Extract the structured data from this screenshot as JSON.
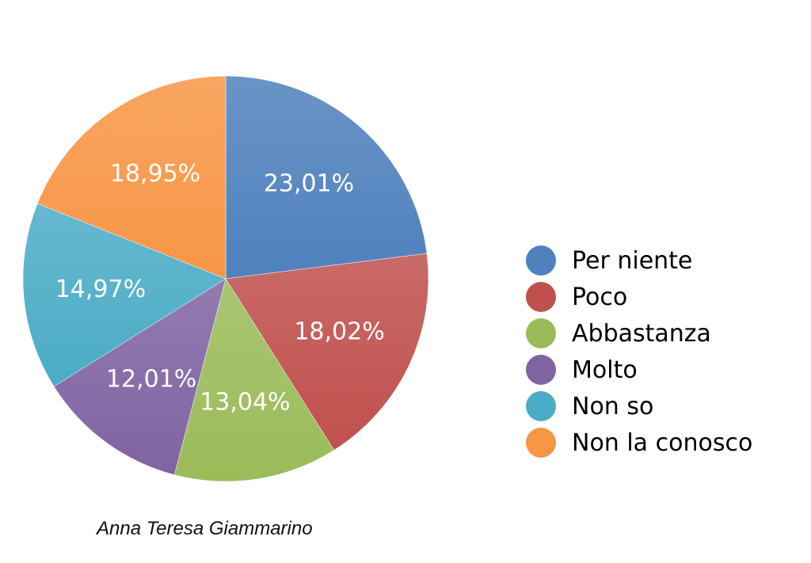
{
  "chart_data": {
    "type": "pie",
    "title": "",
    "start_angle": "top, clockwise",
    "slices": [
      {
        "label": "Per niente",
        "value": 23.01,
        "text": "23,01%",
        "color": "#4F81BD"
      },
      {
        "label": "Poco",
        "value": 18.02,
        "text": "18,02%",
        "color": "#C0504D"
      },
      {
        "label": "Abbastanza",
        "value": 13.04,
        "text": "13,04%",
        "color": "#9BBB59"
      },
      {
        "label": "Molto",
        "value": 12.01,
        "text": "12,01%",
        "color": "#8064A2"
      },
      {
        "label": "Non so",
        "value": 14.97,
        "text": "14,97%",
        "color": "#4BACC6"
      },
      {
        "label": "Non la conosco",
        "value": 18.95,
        "text": "18,95%",
        "color": "#F79646"
      }
    ],
    "legend_position": "right"
  },
  "credit": "Anna Teresa Giammarino"
}
